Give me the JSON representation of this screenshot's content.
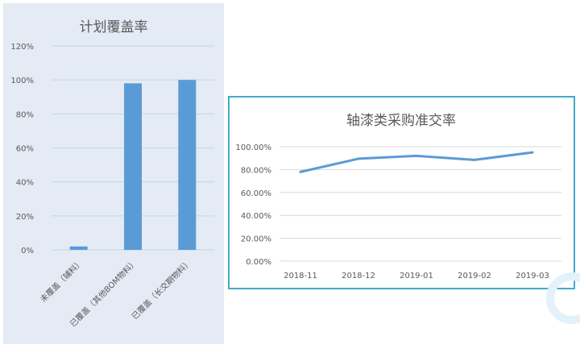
{
  "chart_data": [
    {
      "type": "bar",
      "title": "计划覆盖率",
      "categories": [
        "未覆盖（辅料）",
        "已覆盖（其他BOM物料）",
        "已覆盖（长交期物料）"
      ],
      "values": [
        2,
        98,
        100
      ],
      "yticks": [
        "0%",
        "20%",
        "40%",
        "60%",
        "80%",
        "100%",
        "120%"
      ],
      "ylim": [
        0,
        120
      ],
      "grid": true,
      "legend": "none",
      "colors": {
        "bar": "#5b9bd5",
        "grid": "#c9d3df",
        "text": "#595959",
        "background": "#e4ebf5"
      }
    },
    {
      "type": "line",
      "title": "轴漆类采购准交率",
      "categories": [
        "2018-11",
        "2018-12",
        "2019-01",
        "2019-02",
        "2019-03"
      ],
      "values": [
        78,
        89.5,
        92,
        88.5,
        95
      ],
      "yticks": [
        "0.00%",
        "20.00%",
        "40.00%",
        "60.00%",
        "80.00%",
        "100.00%"
      ],
      "ylim": [
        0,
        100
      ],
      "grid": true,
      "legend": "none",
      "colors": {
        "line": "#5b9bd5",
        "grid": "#d9d9d9",
        "text": "#595959",
        "border": "#44a9c9"
      }
    }
  ]
}
